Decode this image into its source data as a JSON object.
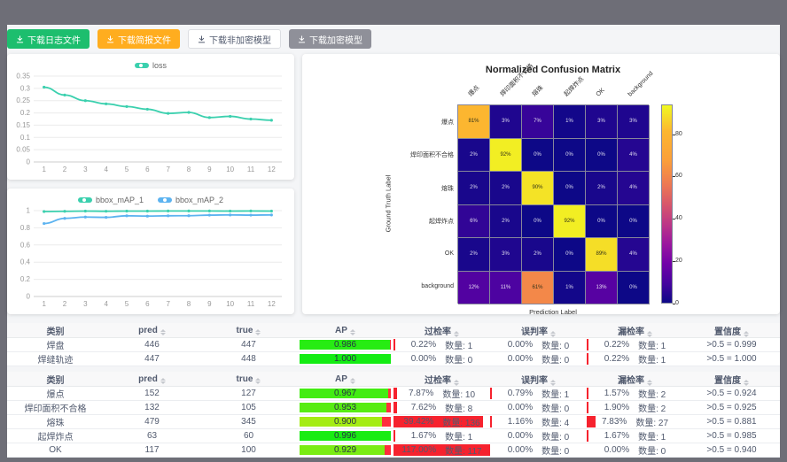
{
  "page": {
    "frame_color": "#6e6e77",
    "content_bg": "#f4f5f7"
  },
  "toolbar": {
    "buttons": [
      {
        "label": "下载日志文件",
        "type": "success",
        "color": "#1dbe6e"
      },
      {
        "label": "下载简报文件",
        "type": "warning",
        "color": "#ffad1f"
      },
      {
        "label": "下载非加密模型",
        "type": "default",
        "color": "#ffffff"
      },
      {
        "label": "下载加密模型",
        "type": "gray",
        "color": "#8f9099"
      }
    ]
  },
  "labels": {
    "count_label": "数量:"
  },
  "colors": {
    "line_teal": "#3bd0ae",
    "line_blue": "#5cb3f0",
    "ap_remainder_red": "#ff2d3c",
    "rate_bar_red": "#f6222e",
    "axis_text": "#999999",
    "grid_line": "#ebebeb"
  },
  "chart_data": [
    {
      "type": "line",
      "legend_position": "top",
      "x": [
        1,
        2,
        3,
        4,
        5,
        6,
        7,
        8,
        9,
        10,
        11,
        12
      ],
      "series": [
        {
          "name": "loss",
          "color": "#3bd0ae",
          "values": [
            0.305,
            0.273,
            0.25,
            0.237,
            0.226,
            0.215,
            0.198,
            0.202,
            0.181,
            0.186,
            0.175,
            0.17
          ]
        }
      ],
      "ylim": [
        0,
        0.35
      ],
      "yticks": [
        0,
        0.05,
        0.1,
        0.15,
        0.2,
        0.25,
        0.3,
        0.35
      ],
      "grid": true
    },
    {
      "type": "line",
      "legend_position": "top",
      "x": [
        1,
        2,
        3,
        4,
        5,
        6,
        7,
        8,
        9,
        10,
        11,
        12
      ],
      "series": [
        {
          "name": "bbox_mAP_1",
          "color": "#3bd0ae",
          "values": [
            0.99,
            0.992,
            0.995,
            0.993,
            0.995,
            0.995,
            0.996,
            0.996,
            0.996,
            0.995,
            0.996,
            0.995
          ]
        },
        {
          "name": "bbox_mAP_2",
          "color": "#5cb3f0",
          "values": [
            0.85,
            0.91,
            0.925,
            0.922,
            0.94,
            0.936,
            0.94,
            0.941,
            0.948,
            0.95,
            0.948,
            0.95
          ]
        }
      ],
      "ylim": [
        0,
        1
      ],
      "yticks": [
        0,
        0.2,
        0.4,
        0.6,
        0.8,
        1
      ],
      "grid": true
    },
    {
      "type": "heatmap",
      "title": "Normalized Confusion Matrix",
      "xlabel": "Prediction Label",
      "ylabel": "Ground Truth Label",
      "labels": [
        "爆点",
        "焊印面积不合格",
        "熔珠",
        "起焊炸点",
        "OK",
        "background"
      ],
      "matrix": [
        [
          81,
          3,
          7,
          1,
          3,
          3
        ],
        [
          2,
          92,
          0,
          0,
          0,
          4
        ],
        [
          2,
          2,
          90,
          0,
          2,
          4
        ],
        [
          6,
          2,
          0,
          92,
          0,
          0
        ],
        [
          2,
          3,
          2,
          0,
          89,
          4
        ],
        [
          12,
          11,
          61,
          1,
          13,
          0
        ]
      ],
      "unit": "%",
      "vmax": 94,
      "colormap": "plasma",
      "colorbar_ticks": [
        0,
        20,
        40,
        60,
        80
      ]
    },
    {
      "type": "table",
      "headers": [
        {
          "label": "类别",
          "sortable": false
        },
        {
          "label": "pred",
          "sortable": true
        },
        {
          "label": "true",
          "sortable": true
        },
        {
          "label": "AP",
          "sortable": true
        },
        {
          "label": "过检率",
          "sortable": true
        },
        {
          "label": "误判率",
          "sortable": true
        },
        {
          "label": "漏检率",
          "sortable": true
        },
        {
          "label": "置信度",
          "sortable": true
        }
      ],
      "rows": [
        {
          "cls": "焊盘",
          "pred": 446,
          "true": 447,
          "ap": "0.986",
          "over": {
            "pct": "0.22%",
            "count": 1,
            "bar": 2
          },
          "mis": {
            "pct": "0.00%",
            "count": 0,
            "bar": 0
          },
          "miss": {
            "pct": "0.22%",
            "count": 1,
            "bar": 2
          },
          "conf": ">0.5 = 0.999"
        },
        {
          "cls": "焊缝轨迹",
          "pred": 447,
          "true": 448,
          "ap": "1.000",
          "over": {
            "pct": "0.00%",
            "count": 0,
            "bar": 0
          },
          "mis": {
            "pct": "0.00%",
            "count": 0,
            "bar": 0
          },
          "miss": {
            "pct": "0.22%",
            "count": 1,
            "bar": 2
          },
          "conf": ">0.5 = 1.000"
        }
      ]
    },
    {
      "type": "table",
      "headers": [
        {
          "label": "类别",
          "sortable": false
        },
        {
          "label": "pred",
          "sortable": true
        },
        {
          "label": "true",
          "sortable": true
        },
        {
          "label": "AP",
          "sortable": true
        },
        {
          "label": "过检率",
          "sortable": true
        },
        {
          "label": "误判率",
          "sortable": true
        },
        {
          "label": "漏检率",
          "sortable": true
        },
        {
          "label": "置信度",
          "sortable": true
        }
      ],
      "rows": [
        {
          "cls": "爆点",
          "pred": 152,
          "true": 127,
          "ap": "0.967",
          "over": {
            "pct": "7.87%",
            "count": 10,
            "bar": 4
          },
          "mis": {
            "pct": "0.79%",
            "count": 1,
            "bar": 2
          },
          "miss": {
            "pct": "1.57%",
            "count": 2,
            "bar": 2
          },
          "conf": ">0.5 = 0.924"
        },
        {
          "cls": "焊印面积不合格",
          "pred": 132,
          "true": 105,
          "ap": "0.953",
          "over": {
            "pct": "7.62%",
            "count": 8,
            "bar": 4
          },
          "mis": {
            "pct": "0.00%",
            "count": 0,
            "bar": 0
          },
          "miss": {
            "pct": "1.90%",
            "count": 2,
            "bar": 2
          },
          "conf": ">0.5 = 0.925"
        },
        {
          "cls": "熔珠",
          "pred": 479,
          "true": 345,
          "ap": "0.900",
          "over": {
            "pct": "39.42%",
            "count": 136,
            "bar": 93
          },
          "mis": {
            "pct": "1.16%",
            "count": 4,
            "bar": 2
          },
          "miss": {
            "pct": "7.83%",
            "count": 27,
            "bar": 9
          },
          "conf": ">0.5 = 0.881"
        },
        {
          "cls": "起焊炸点",
          "pred": 63,
          "true": 60,
          "ap": "0.996",
          "over": {
            "pct": "1.67%",
            "count": 1,
            "bar": 2
          },
          "mis": {
            "pct": "0.00%",
            "count": 0,
            "bar": 0
          },
          "miss": {
            "pct": "1.67%",
            "count": 1,
            "bar": 2
          },
          "conf": ">0.5 = 0.985"
        },
        {
          "cls": "OK",
          "pred": 117,
          "true": 100,
          "ap": "0.929",
          "over": {
            "pct": "117.00%",
            "count": 117,
            "bar": 100
          },
          "mis": {
            "pct": "0.00%",
            "count": 0,
            "bar": 0
          },
          "miss": {
            "pct": "0.00%",
            "count": 0,
            "bar": 0
          },
          "conf": ">0.5 = 0.940"
        }
      ]
    }
  ]
}
